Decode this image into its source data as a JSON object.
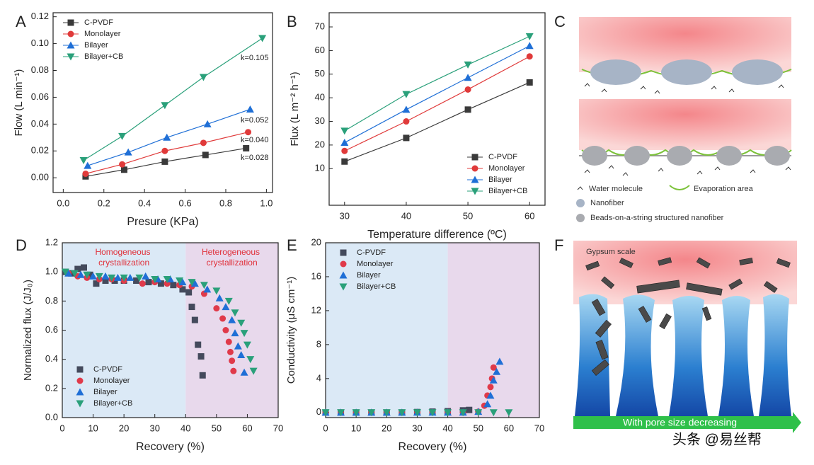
{
  "chart_data": [
    {
      "panel": "A",
      "type": "line",
      "xlabel": "Presure (KPa)",
      "ylabel": "Flow (L min⁻¹)",
      "xlim": [
        -0.05,
        1.03
      ],
      "ylim": [
        -0.011,
        0.123
      ],
      "xticks": [
        {
          "value": 0,
          "label": "0.0"
        },
        0.2,
        0.4,
        0.6,
        0.8,
        {
          "value": 1,
          "label": "1.0"
        }
      ],
      "yticks": [
        {
          "value": 0,
          "label": "0.00"
        },
        0.02,
        0.04,
        0.06,
        0.08,
        {
          "value": 0.1,
          "label": "0.10"
        },
        0.12
      ],
      "legend": "upper left",
      "series": [
        {
          "name": "C-PVDF",
          "color": "#3a3a3a",
          "marker": "square",
          "x": [
            0.11,
            0.3,
            0.5,
            0.7,
            0.9
          ],
          "values": [
            0.001,
            0.006,
            0.012,
            0.017,
            0.022
          ]
        },
        {
          "name": "Monolayer",
          "color": "#e03a3a",
          "marker": "circle",
          "x": [
            0.11,
            0.29,
            0.5,
            0.69,
            0.91
          ],
          "values": [
            0.003,
            0.01,
            0.02,
            0.026,
            0.034
          ]
        },
        {
          "name": "Bilayer",
          "color": "#1f6fd6",
          "marker": "triangle-up",
          "x": [
            0.12,
            0.32,
            0.51,
            0.71,
            0.92
          ],
          "values": [
            0.009,
            0.019,
            0.03,
            0.04,
            0.051
          ]
        },
        {
          "name": "Bilayer+CB",
          "color": "#2aa07a",
          "marker": "triangle-down",
          "x": [
            0.1,
            0.29,
            0.5,
            0.69,
            0.98
          ],
          "values": [
            0.013,
            0.031,
            0.054,
            0.075,
            0.104
          ]
        }
      ],
      "annotations": [
        "k=0.105",
        "k=0.052",
        "k=0.040",
        "k=0.028"
      ]
    },
    {
      "panel": "B",
      "type": "line",
      "xlabel": "Temperature difference (ºC)",
      "ylabel": "Flux (L m⁻² h⁻¹)",
      "xlim": [
        27.5,
        62.5
      ],
      "ylim": [
        -5.5,
        76
      ],
      "xticks": [
        30,
        40,
        50,
        60
      ],
      "yticks": [
        10,
        20,
        30,
        40,
        50,
        60,
        70
      ],
      "legend": "lower right",
      "series": [
        {
          "name": "C-PVDF",
          "color": "#3a3a3a",
          "marker": "square",
          "x": [
            30,
            40,
            50,
            60
          ],
          "values": [
            13,
            23,
            35,
            46.5
          ]
        },
        {
          "name": "Monolayer",
          "color": "#e03a3a",
          "marker": "circle",
          "x": [
            30,
            40,
            50,
            60
          ],
          "values": [
            17.5,
            30,
            43.5,
            57.5
          ]
        },
        {
          "name": "Bilayer",
          "color": "#1f6fd6",
          "marker": "triangle-up",
          "x": [
            30,
            40,
            50,
            60
          ],
          "values": [
            21,
            35,
            48.5,
            62
          ]
        },
        {
          "name": "Bilayer+CB",
          "color": "#2aa07a",
          "marker": "triangle-down",
          "x": [
            30,
            40,
            50,
            60
          ],
          "values": [
            26,
            41.5,
            54,
            66
          ]
        }
      ]
    },
    {
      "panel": "D",
      "type": "scatter",
      "xlabel": "Recovery (%)",
      "ylabel": "Normalized flux (J/J₀)",
      "xlim": [
        0,
        70
      ],
      "ylim": [
        0,
        1.2
      ],
      "xticks": [
        0,
        10,
        20,
        30,
        40,
        50,
        60,
        70
      ],
      "yticks": [
        {
          "value": 0,
          "label": "0.0"
        },
        0.2,
        0.4,
        0.6,
        0.8,
        {
          "value": 1,
          "label": "1.0"
        },
        1.2
      ],
      "legend": "lower left",
      "regions": [
        {
          "xlim": [
            0,
            40
          ],
          "color": "#dbe9f6",
          "label": "Homogeneous crystallization"
        },
        {
          "xlim": [
            40,
            70
          ],
          "color": "#e8d9ec",
          "label": "Heterogeneous crystallization"
        }
      ],
      "series": [
        {
          "name": "C-PVDF",
          "color": "#444a5c",
          "marker": "square",
          "x": [
            1,
            3,
            5,
            7,
            9,
            11,
            14,
            17,
            20,
            24,
            28,
            32,
            36,
            39,
            41,
            42,
            43,
            44,
            45,
            45.5
          ],
          "values": [
            1.0,
            0.99,
            1.02,
            1.03,
            0.98,
            0.92,
            0.94,
            0.94,
            0.94,
            0.94,
            0.93,
            0.92,
            0.91,
            0.88,
            0.86,
            0.76,
            0.67,
            0.5,
            0.42,
            0.29
          ]
        },
        {
          "name": "Monolayer",
          "color": "#e03a4a",
          "marker": "circle",
          "x": [
            2,
            5,
            8,
            12,
            16,
            20,
            26,
            30,
            34,
            38,
            42,
            46,
            50,
            52,
            53,
            54,
            54.5,
            55,
            55.5
          ],
          "values": [
            0.99,
            0.97,
            0.96,
            0.95,
            0.95,
            0.94,
            0.92,
            0.93,
            0.92,
            0.91,
            0.9,
            0.85,
            0.75,
            0.68,
            0.6,
            0.52,
            0.45,
            0.39,
            0.32
          ]
        },
        {
          "name": "Bilayer",
          "color": "#1f6fd6",
          "marker": "triangle-up",
          "x": [
            2,
            6,
            10,
            14,
            18,
            22,
            27,
            31,
            35,
            39,
            43,
            47,
            51,
            53,
            55,
            56,
            57,
            58,
            59
          ],
          "values": [
            0.99,
            0.98,
            0.97,
            0.97,
            0.96,
            0.96,
            0.97,
            0.95,
            0.95,
            0.93,
            0.92,
            0.88,
            0.82,
            0.76,
            0.67,
            0.58,
            0.49,
            0.43,
            0.31
          ]
        },
        {
          "name": "Bilayer+CB",
          "color": "#2aa07a",
          "marker": "triangle-down",
          "x": [
            1,
            4,
            8,
            12,
            16,
            20,
            25,
            30,
            34,
            38,
            42,
            46,
            50,
            54,
            56,
            58,
            59,
            60,
            61,
            62
          ],
          "values": [
            1.0,
            0.99,
            0.98,
            0.97,
            0.96,
            0.96,
            0.96,
            0.95,
            0.95,
            0.94,
            0.93,
            0.91,
            0.87,
            0.8,
            0.72,
            0.65,
            0.58,
            0.5,
            0.4,
            0.32
          ]
        }
      ]
    },
    {
      "panel": "E",
      "type": "scatter",
      "xlabel": "Recovery (%)",
      "ylabel": "Conductivity (μS cm⁻¹)",
      "xlim": [
        0,
        70
      ],
      "ylim": [
        -0.6,
        20
      ],
      "xticks": [
        0,
        10,
        20,
        30,
        40,
        50,
        60,
        70
      ],
      "yticks": [
        0,
        4,
        8,
        12,
        16,
        20
      ],
      "legend": "upper left",
      "regions": [
        {
          "xlim": [
            0,
            40
          ],
          "color": "#dbe9f6"
        },
        {
          "xlim": [
            40,
            70
          ],
          "color": "#e8d9ec"
        }
      ],
      "series": [
        {
          "name": "C-PVDF",
          "color": "#444a5c",
          "marker": "square",
          "x": [
            0,
            5,
            10,
            15,
            20,
            25,
            30,
            35,
            40,
            45,
            47
          ],
          "values": [
            0,
            0,
            0,
            0,
            0,
            0,
            0.05,
            0.1,
            0.15,
            0.25,
            0.3
          ]
        },
        {
          "name": "Monolayer",
          "color": "#e03a4a",
          "marker": "circle",
          "x": [
            0,
            5,
            10,
            15,
            20,
            25,
            30,
            35,
            40,
            45,
            50,
            52,
            53,
            54,
            54.5,
            55
          ],
          "values": [
            0,
            0,
            0,
            0,
            0,
            0,
            0,
            0,
            0,
            0,
            0.1,
            0.8,
            2,
            3,
            4,
            5.3
          ]
        },
        {
          "name": "Bilayer",
          "color": "#1f6fd6",
          "marker": "triangle-up",
          "x": [
            0,
            5,
            10,
            15,
            20,
            25,
            30,
            35,
            40,
            45,
            50,
            53,
            54,
            55,
            56,
            57
          ],
          "values": [
            0,
            0,
            0,
            0,
            0,
            0,
            0,
            0,
            0,
            0,
            0.1,
            1,
            2,
            3.8,
            4.8,
            6
          ]
        },
        {
          "name": "Bilayer+CB",
          "color": "#2aa07a",
          "marker": "triangle-down",
          "x": [
            0,
            5,
            10,
            15,
            20,
            25,
            30,
            35,
            40,
            45,
            50,
            55,
            60
          ],
          "values": [
            0,
            0,
            0,
            0,
            0,
            0,
            0,
            0,
            0,
            0,
            0,
            0,
            0
          ]
        }
      ]
    }
  ],
  "diagrams": [
    {
      "panel": "C",
      "labels": [
        "Water molecule",
        "Evaporation area",
        "Nanofiber",
        "Beads-on-a-string structured nanofiber"
      ]
    },
    {
      "panel": "F",
      "labels": [
        "Gypsum scale",
        "With pore size decreasing"
      ]
    }
  ],
  "watermark": "头条 @易丝帮"
}
